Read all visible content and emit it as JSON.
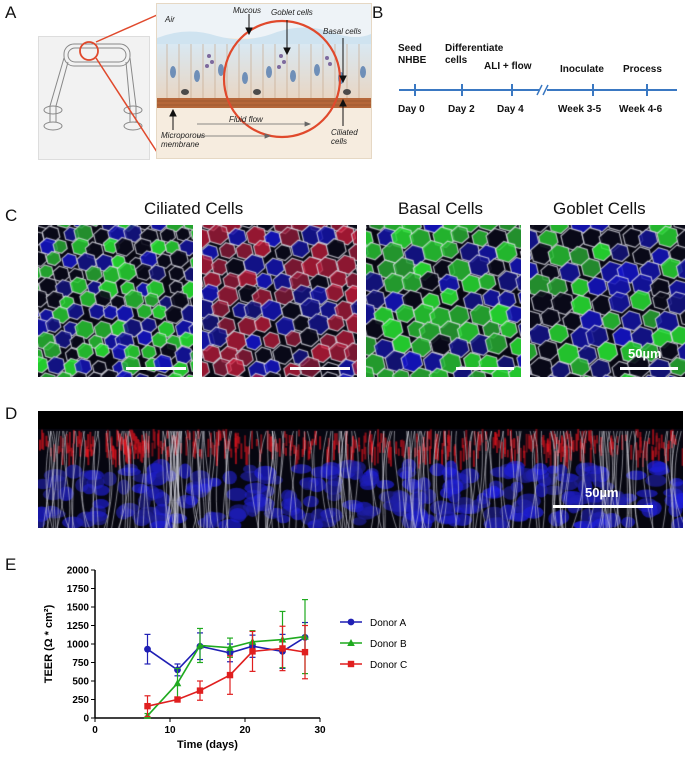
{
  "panels": {
    "A": "A",
    "B": "B",
    "C": "C",
    "D": "D",
    "E": "E"
  },
  "schematic": {
    "air": "Air",
    "mucous": "Mucous",
    "goblet": "Goblet cells",
    "basal": "Basal cells",
    "membrane": "Microporous membrane",
    "flow": "Fluid flow",
    "ciliated": "Ciliated cells"
  },
  "timeline": {
    "top": [
      "Seed NHBE",
      "Differentiate cells",
      "ALI + flow",
      "Inoculate",
      "Process"
    ],
    "bottom": [
      "Day 0",
      "Day 2",
      "Day 4",
      "Week 3-5",
      "Week 4-6"
    ]
  },
  "micrographs": {
    "titles": [
      "Ciliated Cells",
      "Basal Cells",
      "Goblet Cells"
    ],
    "scale_label_c": "50µm",
    "scale_label_d": "50µm"
  },
  "chart_data": {
    "type": "line",
    "x_label": "Time (days)",
    "y_label": "TEER (Ω * cm²)",
    "xlim": [
      0,
      30
    ],
    "ylim": [
      0,
      2000
    ],
    "x_ticks": [
      0,
      10,
      20,
      30
    ],
    "y_ticks": [
      0,
      250,
      500,
      750,
      1000,
      1250,
      1500,
      1750,
      2000
    ],
    "series": [
      {
        "name": "Donor A",
        "color": "#1f1fb4",
        "marker": "circle",
        "x": [
          7,
          11,
          14,
          18,
          21,
          25,
          28
        ],
        "y": [
          930,
          650,
          970,
          880,
          970,
          900,
          1090
        ],
        "err": [
          200,
          80,
          180,
          120,
          150,
          230,
          200
        ]
      },
      {
        "name": "Donor B",
        "color": "#1faa1f",
        "marker": "triangle",
        "x": [
          7,
          11,
          14,
          18,
          21,
          25,
          28
        ],
        "y": [
          30,
          470,
          980,
          950,
          1030,
          1060,
          1100
        ],
        "err": [
          30,
          200,
          230,
          130,
          150,
          380,
          500
        ]
      },
      {
        "name": "Donor C",
        "color": "#e01f1f",
        "marker": "square",
        "x": [
          7,
          11,
          14,
          18,
          21,
          25,
          28
        ],
        "y": [
          160,
          250,
          370,
          580,
          900,
          940,
          890
        ],
        "err": [
          140,
          30,
          130,
          260,
          270,
          300,
          360
        ]
      }
    ]
  }
}
